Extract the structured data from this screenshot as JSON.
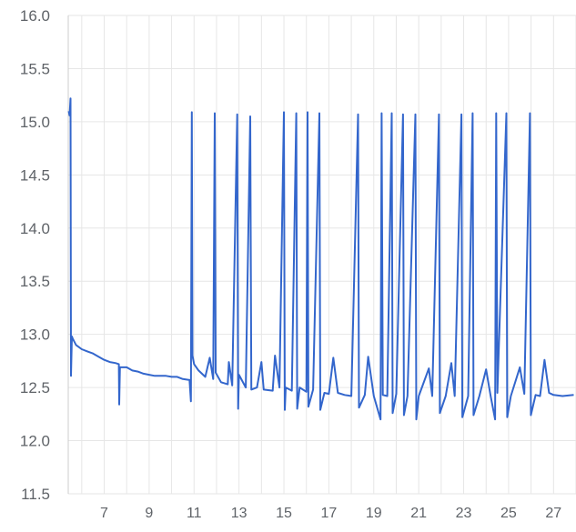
{
  "chart_data": {
    "type": "line",
    "title": "",
    "xlabel": "",
    "ylabel": "",
    "xlim": [
      5.4,
      28.0
    ],
    "ylim": [
      11.5,
      16.0
    ],
    "x_ticks": [
      7,
      9,
      11,
      13,
      15,
      17,
      19,
      21,
      23,
      25,
      27
    ],
    "x_tick_labels": [
      "7",
      "9",
      "11",
      "13",
      "15",
      "17",
      "19",
      "21",
      "23",
      "25",
      "27"
    ],
    "y_ticks": [
      11.5,
      12.0,
      12.5,
      13.0,
      13.5,
      14.0,
      14.5,
      15.0,
      15.5,
      16.0
    ],
    "y_tick_labels": [
      "11.5",
      "12.0",
      "12.5",
      "13.0",
      "13.5",
      "14.0",
      "14.5",
      "15.0",
      "15.5",
      "16.0"
    ],
    "grid": true,
    "colors": {
      "line": "#3366cc",
      "grid": "#e6e6e6",
      "axis": "#cccccc"
    },
    "series": [
      {
        "points": [
          [
            5.42,
            15.1
          ],
          [
            5.46,
            15.06
          ],
          [
            5.5,
            15.22
          ],
          [
            5.52,
            12.61
          ],
          [
            5.56,
            12.98
          ],
          [
            5.6,
            12.96
          ],
          [
            5.75,
            12.9
          ],
          [
            6.0,
            12.86
          ],
          [
            6.25,
            12.84
          ],
          [
            6.5,
            12.82
          ],
          [
            6.75,
            12.79
          ],
          [
            7.0,
            12.76
          ],
          [
            7.25,
            12.74
          ],
          [
            7.5,
            12.73
          ],
          [
            7.65,
            12.72
          ],
          [
            7.67,
            12.34
          ],
          [
            7.7,
            12.69
          ],
          [
            8.0,
            12.69
          ],
          [
            8.25,
            12.66
          ],
          [
            8.5,
            12.65
          ],
          [
            8.75,
            12.63
          ],
          [
            9.0,
            12.62
          ],
          [
            9.25,
            12.61
          ],
          [
            9.5,
            12.61
          ],
          [
            9.75,
            12.61
          ],
          [
            10.0,
            12.6
          ],
          [
            10.25,
            12.6
          ],
          [
            10.5,
            12.58
          ],
          [
            10.8,
            12.57
          ],
          [
            10.86,
            12.37
          ],
          [
            10.9,
            15.09
          ],
          [
            10.93,
            12.8
          ],
          [
            11.0,
            12.72
          ],
          [
            11.2,
            12.66
          ],
          [
            11.5,
            12.6
          ],
          [
            11.7,
            12.78
          ],
          [
            11.85,
            12.58
          ],
          [
            11.92,
            15.08
          ],
          [
            11.96,
            12.64
          ],
          [
            12.2,
            12.55
          ],
          [
            12.5,
            12.53
          ],
          [
            12.55,
            12.74
          ],
          [
            12.7,
            12.52
          ],
          [
            12.92,
            15.07
          ],
          [
            12.96,
            12.3
          ],
          [
            13.0,
            12.62
          ],
          [
            13.3,
            12.5
          ],
          [
            13.5,
            15.05
          ],
          [
            13.55,
            12.48
          ],
          [
            13.8,
            12.5
          ],
          [
            14.0,
            12.74
          ],
          [
            14.1,
            12.48
          ],
          [
            14.5,
            12.47
          ],
          [
            14.6,
            12.8
          ],
          [
            14.8,
            12.5
          ],
          [
            15.0,
            15.09
          ],
          [
            15.04,
            12.29
          ],
          [
            15.08,
            12.5
          ],
          [
            15.35,
            12.47
          ],
          [
            15.55,
            15.08
          ],
          [
            15.59,
            12.3
          ],
          [
            15.7,
            12.5
          ],
          [
            16.0,
            12.46
          ],
          [
            16.05,
            15.09
          ],
          [
            16.09,
            12.32
          ],
          [
            16.3,
            12.48
          ],
          [
            16.58,
            15.08
          ],
          [
            16.62,
            12.29
          ],
          [
            16.8,
            12.45
          ],
          [
            17.0,
            12.44
          ],
          [
            17.2,
            12.78
          ],
          [
            17.4,
            12.45
          ],
          [
            17.7,
            12.43
          ],
          [
            18.0,
            12.42
          ],
          [
            18.3,
            15.07
          ],
          [
            18.34,
            12.31
          ],
          [
            18.6,
            12.43
          ],
          [
            18.75,
            12.79
          ],
          [
            19.0,
            12.42
          ],
          [
            19.3,
            12.2
          ],
          [
            19.35,
            15.08
          ],
          [
            19.4,
            12.43
          ],
          [
            19.6,
            12.42
          ],
          [
            19.8,
            15.08
          ],
          [
            19.84,
            12.26
          ],
          [
            20.0,
            12.44
          ],
          [
            20.3,
            15.07
          ],
          [
            20.34,
            12.24
          ],
          [
            20.5,
            12.42
          ],
          [
            20.85,
            15.07
          ],
          [
            20.89,
            12.2
          ],
          [
            21.0,
            12.42
          ],
          [
            21.45,
            12.68
          ],
          [
            21.6,
            12.42
          ],
          [
            21.9,
            15.07
          ],
          [
            21.94,
            12.26
          ],
          [
            22.2,
            12.42
          ],
          [
            22.45,
            12.73
          ],
          [
            22.6,
            12.42
          ],
          [
            22.9,
            15.07
          ],
          [
            22.94,
            12.22
          ],
          [
            23.2,
            12.42
          ],
          [
            23.4,
            15.08
          ],
          [
            23.44,
            12.24
          ],
          [
            23.7,
            12.42
          ],
          [
            24.0,
            12.67
          ],
          [
            24.2,
            12.42
          ],
          [
            24.4,
            12.2
          ],
          [
            24.45,
            15.08
          ],
          [
            24.5,
            12.45
          ],
          [
            24.9,
            15.08
          ],
          [
            24.94,
            12.22
          ],
          [
            25.1,
            12.42
          ],
          [
            25.5,
            12.69
          ],
          [
            25.7,
            12.44
          ],
          [
            25.95,
            15.08
          ],
          [
            25.99,
            12.24
          ],
          [
            26.2,
            12.43
          ],
          [
            26.4,
            12.42
          ],
          [
            26.6,
            12.76
          ],
          [
            26.8,
            12.45
          ],
          [
            27.0,
            12.43
          ],
          [
            27.4,
            12.42
          ],
          [
            27.9,
            12.43
          ]
        ]
      }
    ]
  }
}
